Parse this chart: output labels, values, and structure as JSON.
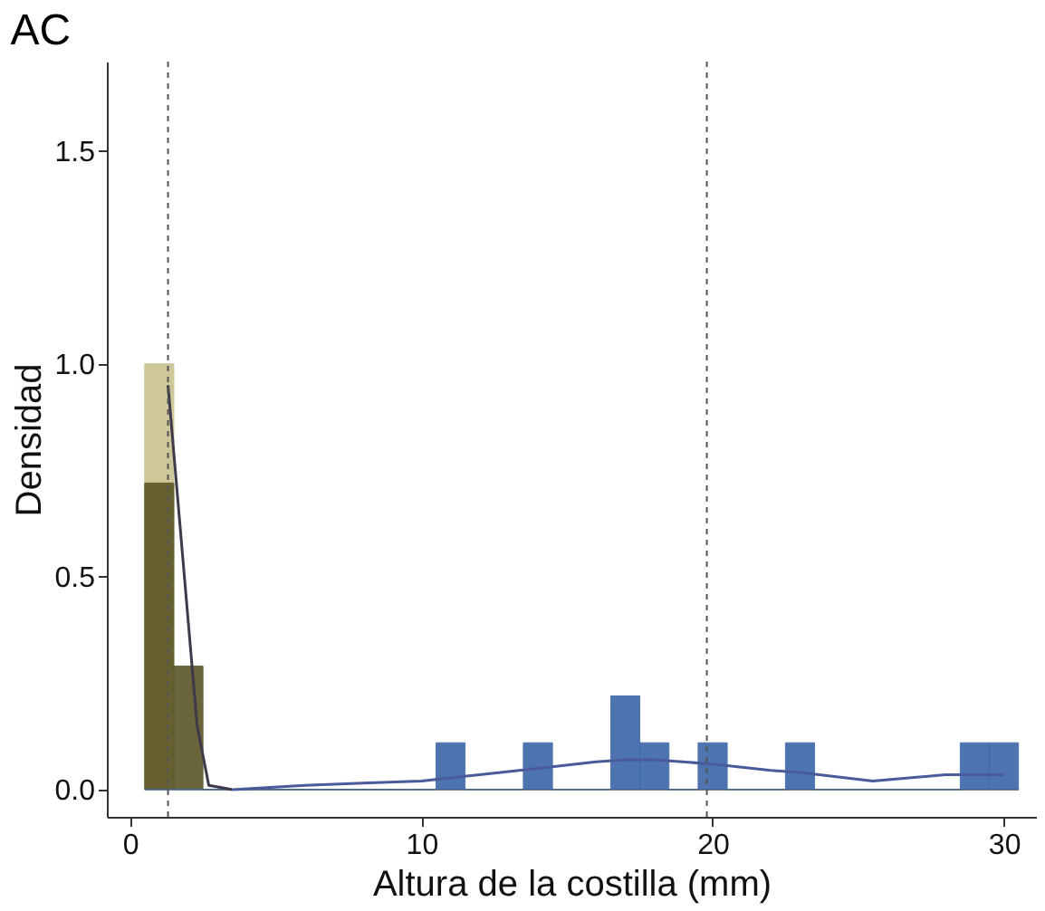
{
  "chart_data": {
    "type": "histogram",
    "title": "AC",
    "xlabel": "Altura de la costilla (mm)",
    "ylabel": "Densidad",
    "bins": [
      0.5,
      1.5,
      2.5,
      3.5,
      4.5,
      5.5,
      6.5,
      7.5,
      8.5,
      9.5,
      10.5,
      11.5,
      12.5,
      13.5,
      14.5,
      15.5,
      16.5,
      17.5,
      18.5,
      19.5,
      20.5,
      21.5,
      22.5,
      23.5,
      24.5,
      25.5,
      26.5,
      27.5,
      28.5,
      29.5,
      30.5
    ],
    "series": [
      {
        "color": "#c9c28f",
        "values": [
          1.0,
          0,
          0,
          0,
          0,
          0,
          0,
          0,
          0,
          0,
          0,
          0,
          0,
          0,
          0,
          0,
          0,
          0,
          0,
          0,
          0,
          0,
          0,
          0,
          0,
          0,
          0,
          0,
          0,
          0
        ]
      },
      {
        "color": "#5c5526",
        "values": [
          0.72,
          0.29,
          0,
          0,
          0,
          0,
          0,
          0,
          0,
          0,
          0,
          0,
          0,
          0,
          0,
          0,
          0,
          0,
          0,
          0,
          0,
          0,
          0,
          0,
          0,
          0,
          0,
          0,
          0,
          0
        ]
      },
      {
        "color": "#3b66a8",
        "values": [
          0,
          0,
          0,
          0,
          0,
          0,
          0,
          0,
          0,
          0,
          0.11,
          0,
          0,
          0.11,
          0,
          0,
          0.22,
          0.11,
          0,
          0.11,
          0,
          0,
          0.11,
          0,
          0,
          0,
          0,
          0,
          0.11,
          0.11
        ]
      },
      {
        "type": "line",
        "color": "#3d3a4a",
        "x": [
          1.3,
          1.8,
          2.3,
          2.7,
          3.5
        ],
        "values": [
          0.95,
          0.55,
          0.15,
          0.01,
          0.0
        ]
      },
      {
        "type": "line",
        "color": "#4a5a9a",
        "x": [
          3.5,
          6,
          8,
          10,
          12,
          14,
          16,
          17,
          18,
          20,
          22,
          23,
          25.5,
          28,
          30
        ],
        "values": [
          0.0,
          0.01,
          0.015,
          0.02,
          0.035,
          0.05,
          0.065,
          0.07,
          0.07,
          0.06,
          0.045,
          0.04,
          0.02,
          0.035,
          0.035
        ]
      }
    ],
    "ref_lines": [
      {
        "axis": "x",
        "value": 1.3,
        "color": "#555555",
        "line_style": "dashed"
      },
      {
        "axis": "x",
        "value": 19.8,
        "color": "#555555",
        "line_style": "dashed"
      }
    ],
    "xlim": [
      -0.8,
      31.1
    ],
    "xticks": [
      0,
      10,
      20,
      30
    ],
    "ylim": [
      -0.064,
      1.71
    ],
    "yticks": [
      {
        "value": 0,
        "label": "0.0"
      },
      {
        "value": 0.5,
        "label": "0.5"
      },
      {
        "value": 1,
        "label": "1.0"
      },
      {
        "value": 1.5,
        "label": "1.5"
      }
    ],
    "grid": false
  }
}
